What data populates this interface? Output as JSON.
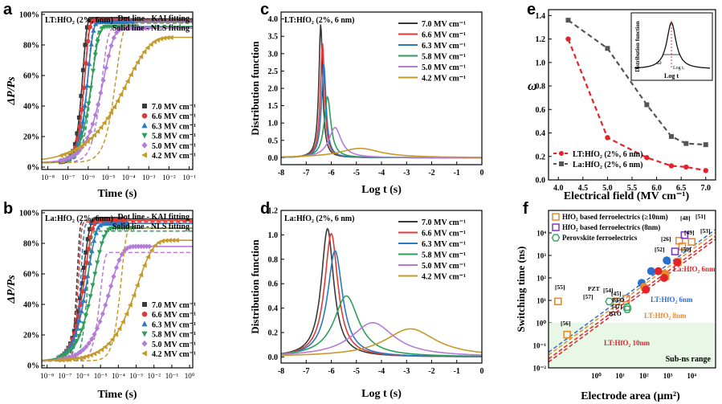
{
  "panels": {
    "a": {
      "letter": "a",
      "sample": "LT:HfO₂ (2%, 6nm)",
      "fit_note_1": "Dot line  - KAI fitting",
      "fit_note_2": "Solid line - NLS fitting",
      "ylabel": "ΔP/Ps",
      "xlabel": "Time (s)",
      "yticks": [
        "0%",
        "20%",
        "40%",
        "60%",
        "80%",
        "100%"
      ],
      "xticks": [
        "10⁻⁸",
        "10⁻⁷",
        "10⁻⁶",
        "10⁻⁵",
        "10⁻⁴",
        "10⁻³",
        "10⁻²",
        "10⁻¹"
      ],
      "legend": [
        "7.0 MV cm⁻¹",
        "6.6 MV cm⁻¹",
        "6.3 MV cm⁻¹",
        "5.8 MV cm⁻¹",
        "5.0 MV cm⁻¹",
        "4.2 MV cm⁻¹"
      ]
    },
    "b": {
      "letter": "b",
      "sample": "La:HfO₂ (2%, 6nm)",
      "fit_note_1": "Dot line  - KAI fitting",
      "fit_note_2": "Solid line - NLS fitting",
      "ylabel": "ΔP/Ps",
      "xlabel": "Time (s)",
      "yticks": [
        "0%",
        "20%",
        "40%",
        "60%",
        "80%",
        "100%"
      ],
      "xticks": [
        "10⁻⁸",
        "10⁻⁷",
        "10⁻⁶",
        "10⁻⁵",
        "10⁻⁴",
        "10⁻³",
        "10⁻²",
        "10⁻¹",
        "10⁰"
      ],
      "legend": [
        "7.0 MV cm⁻¹",
        "6.6 MV cm⁻¹",
        "6.3 MV cm⁻¹",
        "5.8 MV cm⁻¹",
        "5.0 MV cm⁻¹",
        "4.2 MV cm⁻¹"
      ]
    },
    "c": {
      "letter": "c",
      "sample": "LT:HfO₂ (2%, 6 nm)",
      "ylabel": "Distribution function",
      "xlabel": "Log t (s)",
      "yticks": [
        "0.0",
        "0.5",
        "1.0",
        "1.5",
        "2.0",
        "2.5",
        "3.0",
        "3.5",
        "4.0"
      ],
      "xticks": [
        "-8",
        "-7",
        "-6",
        "-5",
        "-4",
        "-3",
        "-2",
        "-1",
        "0"
      ],
      "legend": [
        "7.0 MV cm⁻¹",
        "6.6 MV cm⁻¹",
        "6.3 MV cm⁻¹",
        "5.8 MV cm⁻¹",
        "5.0 MV cm⁻¹",
        "4.2 MV cm⁻¹"
      ]
    },
    "d": {
      "letter": "d",
      "sample": "La:HfO₂ (2%, 6 nm)",
      "ylabel": "Distribution function",
      "xlabel": "Log t (s)",
      "yticks": [
        "0.0",
        "0.2",
        "0.4",
        "0.6",
        "0.8",
        "1.0",
        "1.2"
      ],
      "xticks": [
        "-8",
        "-7",
        "-6",
        "-5",
        "-4",
        "-3",
        "-2",
        "-1",
        "0"
      ],
      "legend": [
        "7.0 MV cm⁻¹",
        "6.6 MV cm⁻¹",
        "6.3 MV cm⁻¹",
        "5.8 MV cm⁻¹",
        "5.0 MV cm⁻¹",
        "4.2 MV cm⁻¹"
      ]
    },
    "e": {
      "letter": "e",
      "ylabel": "ω",
      "xlabel": "Electrical field (MV cm⁻¹)",
      "yticks": [
        "0.0",
        "0.2",
        "0.4",
        "0.6",
        "0.8",
        "1.0",
        "1.2",
        "1.4"
      ],
      "xticks": [
        "4.0",
        "4.5",
        "5.0",
        "5.5",
        "6.0",
        "6.5",
        "7.0"
      ],
      "legend": [
        "LT:HfO₂ (2%, 6 nm)",
        "La:HfO₂ (2%, 6 nm)"
      ],
      "inset_ylabel": "Distribution function",
      "inset_xlabel": "Log t",
      "inset_omega": "ω",
      "inset_tick": "Log tᵢ"
    },
    "f": {
      "letter": "f",
      "ylabel": "Switching time (ns)",
      "xlabel": "Electrode area (μm²)",
      "yticks": [
        "10⁻²",
        "10⁻¹",
        "10⁰",
        "10¹",
        "10²",
        "10³",
        "10⁴"
      ],
      "xticks": [
        "10⁰",
        "10¹",
        "10²",
        "10³",
        "10⁴"
      ],
      "legend": [
        "HfO₂ based ferroelectrics (≥10nm)",
        "HfO₂ based ferroelectrics (8nm)",
        "Perovskite ferroelectrics"
      ],
      "subns_label": "Sub-ns range",
      "line_labels": [
        "La:HfO₂ 6nm",
        "LT:HfO₂ 6nm",
        "LT:HfO₂ 8nm",
        "LT:HfO₂ 10nm"
      ],
      "point_labels": [
        "[55]",
        "[56]",
        "[57]",
        "PZT",
        "[54]",
        "[45]",
        "BFO",
        "[47]",
        "BTO",
        "[48]",
        "[51]",
        "[49]",
        "[53]",
        "[26]",
        "[52]",
        "[50]"
      ]
    }
  },
  "colors": {
    "series": [
      "#3a3a3a",
      "#e03a34",
      "#2a78c8",
      "#2f9e5a",
      "#b57bd8",
      "#c49a28"
    ],
    "lt": "#e0242a",
    "la": "#555555",
    "orange": "#e88a2c",
    "purple": "#7a3fc0",
    "green": "#3aa86a",
    "blue": "#2a6fd0",
    "subns_fill": "#e9f7e6"
  },
  "chart_data": [
    {
      "panel": "a",
      "type": "scatter",
      "x_scale": "log",
      "xlim": [
        5e-09,
        0.15
      ],
      "ylim": [
        0,
        100
      ],
      "x_unit": "s",
      "y_unit": "%",
      "series": [
        {
          "name": "7.0 MV cm⁻¹",
          "t0": 5.5e-07,
          "n": 2.2,
          "max": 97,
          "kai_t0": 5.5e-07,
          "kai_n": 2.4,
          "kai_max": 97
        },
        {
          "name": "6.6 MV cm⁻¹",
          "t0": 7e-07,
          "n": 2.0,
          "max": 96,
          "kai_t0": 7e-07,
          "kai_n": 2.3,
          "kai_max": 96
        },
        {
          "name": "6.3 MV cm⁻¹",
          "t0": 1e-06,
          "n": 1.7,
          "max": 95,
          "kai_t0": 1e-06,
          "kai_n": 2.0,
          "kai_max": 95
        },
        {
          "name": "5.8 MV cm⁻¹",
          "t0": 1.6e-06,
          "n": 1.3,
          "max": 92,
          "kai_t0": 1.6e-06,
          "kai_n": 1.7,
          "kai_max": 92
        },
        {
          "name": "5.0 MV cm⁻¹",
          "t0": 6e-06,
          "n": 0.85,
          "max": 91,
          "kai_t0": 5e-06,
          "kai_n": 1.5,
          "kai_max": 91
        },
        {
          "name": "4.2 MV cm⁻¹",
          "t0": 8e-05,
          "n": 0.38,
          "max": 85,
          "kai_t0": 2.5e-05,
          "kai_n": 1.3,
          "kai_max": 94
        }
      ]
    },
    {
      "panel": "b",
      "type": "scatter",
      "x_scale": "log",
      "xlim": [
        5e-09,
        1.5
      ],
      "ylim": [
        0,
        100
      ],
      "x_unit": "s",
      "y_unit": "%",
      "series": [
        {
          "name": "7.0 MV cm⁻¹",
          "t0": 1.1e-06,
          "n": 1.2,
          "max": 96,
          "kai_t0": 5e-07,
          "kai_n": 3.0,
          "kai_max": 95
        },
        {
          "name": "6.6 MV cm⁻¹",
          "t0": 1.4e-06,
          "n": 1.1,
          "max": 95,
          "kai_t0": 6e-07,
          "kai_n": 2.8,
          "kai_max": 94
        },
        {
          "name": "6.3 MV cm⁻¹",
          "t0": 2e-06,
          "n": 0.95,
          "max": 93,
          "kai_t0": 8e-07,
          "kai_n": 2.6,
          "kai_max": 93
        },
        {
          "name": "5.8 MV cm⁻¹",
          "t0": 4.5e-06,
          "n": 0.8,
          "max": 90,
          "kai_t0": 2e-06,
          "kai_n": 2.2,
          "kai_max": 88
        },
        {
          "name": "5.0 MV cm⁻¹",
          "t0": 3.5e-05,
          "n": 0.65,
          "max": 78,
          "kai_t0": 1e-05,
          "kai_n": 1.8,
          "kai_max": 74
        },
        {
          "name": "4.2 MV cm⁻¹",
          "t0": 0.0012,
          "n": 0.5,
          "max": 82,
          "kai_t0": 0.00015,
          "kai_n": 1.6,
          "kai_max": 90
        }
      ]
    },
    {
      "panel": "c",
      "type": "line",
      "xlim": [
        -8,
        0
      ],
      "ylim": [
        -0.2,
        4.2
      ],
      "series": [
        {
          "name": "7.0 MV cm⁻¹",
          "center": -6.42,
          "width": 0.09,
          "peak": 3.85
        },
        {
          "name": "6.6 MV cm⁻¹",
          "center": -6.35,
          "width": 0.1,
          "peak": 3.3
        },
        {
          "name": "6.3 MV cm⁻¹",
          "center": -6.3,
          "width": 0.11,
          "peak": 2.7
        },
        {
          "name": "5.8 MV cm⁻¹",
          "center": -6.15,
          "width": 0.16,
          "peak": 1.75
        },
        {
          "name": "5.0 MV cm⁻¹",
          "center": -5.85,
          "width": 0.3,
          "peak": 0.87
        },
        {
          "name": "4.2 MV cm⁻¹",
          "center": -4.85,
          "width": 1.0,
          "peak": 0.27
        }
      ]
    },
    {
      "panel": "d",
      "type": "line",
      "xlim": [
        -8,
        0
      ],
      "ylim": [
        -0.05,
        1.2
      ],
      "series": [
        {
          "name": "7.0 MV cm⁻¹",
          "center": -6.15,
          "width": 0.3,
          "peak": 1.05
        },
        {
          "name": "6.6 MV cm⁻¹",
          "center": -6.0,
          "width": 0.32,
          "peak": 1.01
        },
        {
          "name": "6.3 MV cm⁻¹",
          "center": -5.85,
          "width": 0.36,
          "peak": 0.87
        },
        {
          "name": "5.8 MV cm⁻¹",
          "center": -5.4,
          "width": 0.6,
          "peak": 0.5
        },
        {
          "name": "5.0 MV cm⁻¹",
          "center": -4.35,
          "width": 1.05,
          "peak": 0.28
        },
        {
          "name": "4.2 MV cm⁻¹",
          "center": -2.85,
          "width": 1.25,
          "peak": 0.23
        }
      ]
    },
    {
      "panel": "e",
      "type": "line",
      "xlim": [
        3.8,
        7.2
      ],
      "ylim": [
        0,
        1.45
      ],
      "series": [
        {
          "name": "LT:HfO₂ (2%, 6 nm)",
          "x": [
            4.2,
            5.0,
            5.8,
            6.3,
            6.6,
            7.0
          ],
          "y": [
            1.2,
            0.36,
            0.19,
            0.12,
            0.11,
            0.08
          ]
        },
        {
          "name": "La:HfO₂ (2%, 6 nm)",
          "x": [
            4.2,
            5.0,
            5.8,
            6.3,
            6.6,
            7.0
          ],
          "y": [
            1.36,
            1.12,
            0.64,
            0.37,
            0.31,
            0.3
          ]
        }
      ]
    },
    {
      "panel": "f",
      "type": "scatter",
      "x_scale": "log",
      "y_scale": "log",
      "xlim": [
        0.01,
        100000
      ],
      "ylim": [
        0.01,
        100000
      ],
      "subns_max": 1,
      "series": [
        {
          "name": "HfO₂ based ferroelectrics (≥10nm)",
          "x": [
            0.025,
            0.06,
            7,
            18,
            800,
            2600,
            4000,
            3000,
            10000
          ],
          "y": [
            9,
            0.3,
            9,
            12,
            120,
            500,
            2500,
            4500,
            4000
          ]
        },
        {
          "name": "HfO₂ based ferroelectrics (8nm)",
          "x": [
            2000,
            5000
          ],
          "y": [
            1500,
            8000
          ]
        },
        {
          "name": "Perovskite ferroelectrics",
          "x": [
            3.5,
            20,
            20
          ],
          "y": [
            9,
            5,
            4
          ]
        },
        {
          "name": "LT:HfO₂ 6nm",
          "x": [
            80,
            200,
            900
          ],
          "y": [
            60,
            200,
            600
          ]
        },
        {
          "name": "La:HfO₂ 6nm",
          "x": [
            400,
            2500
          ],
          "y": [
            200,
            500
          ]
        },
        {
          "name": "LT:HfO₂ 8nm",
          "x": [
            100,
            800
          ],
          "y": [
            40,
            150
          ]
        },
        {
          "name": "LT:HfO₂ 10nm",
          "x": [
            120,
            700
          ],
          "y": [
            30,
            100
          ]
        }
      ]
    }
  ]
}
